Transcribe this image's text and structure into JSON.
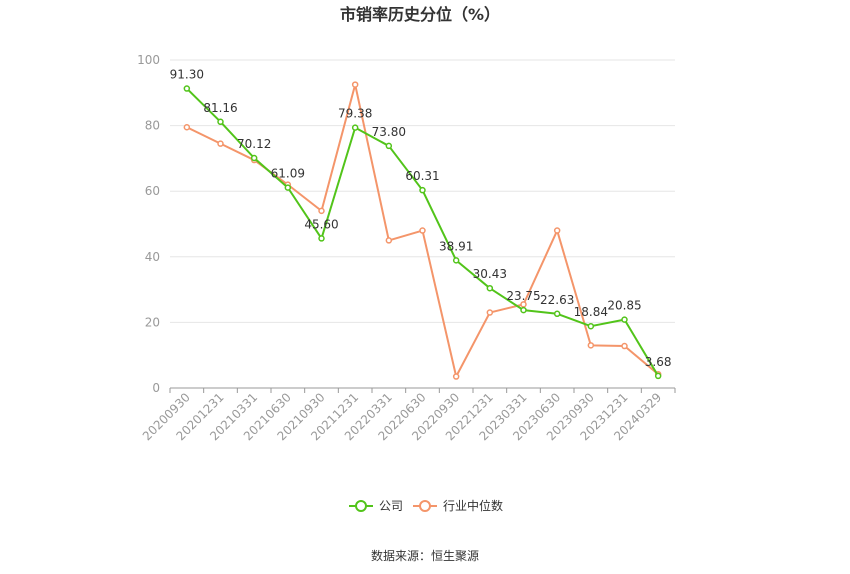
{
  "chart_data": {
    "type": "line",
    "title": "市销率历史分位（%）",
    "categories": [
      "20200930",
      "20201231",
      "20210331",
      "20210630",
      "20210930",
      "20211231",
      "20220331",
      "20220630",
      "20220930",
      "20221231",
      "20230331",
      "20230630",
      "20230930",
      "20231231",
      "20240329"
    ],
    "ylim": [
      0,
      100
    ],
    "yticks": [
      0,
      20,
      40,
      60,
      80,
      100
    ],
    "grid": true,
    "legend_position": "bottom",
    "series": [
      {
        "name": "公司",
        "color": "#52c41a",
        "show_labels": true,
        "labels": [
          "91.30",
          "81.16",
          "70.12",
          "61.09",
          "45.60",
          "79.38",
          "73.80",
          "60.31",
          "38.91",
          "30.43",
          "23.75",
          "22.63",
          "18.84",
          "20.85",
          "3.68"
        ],
        "values": [
          91.3,
          81.16,
          70.12,
          61.09,
          45.6,
          79.38,
          73.8,
          60.31,
          38.91,
          30.43,
          23.75,
          22.63,
          18.84,
          20.85,
          3.68
        ]
      },
      {
        "name": "行业中位数",
        "color": "#f4956a",
        "show_labels": false,
        "values": [
          79.5,
          74.5,
          69.5,
          62.0,
          54.0,
          92.5,
          45.0,
          48.0,
          3.5,
          23.0,
          25.5,
          48.0,
          13.0,
          12.8,
          4.2
        ]
      }
    ],
    "source": "数据来源：恒生聚源"
  }
}
